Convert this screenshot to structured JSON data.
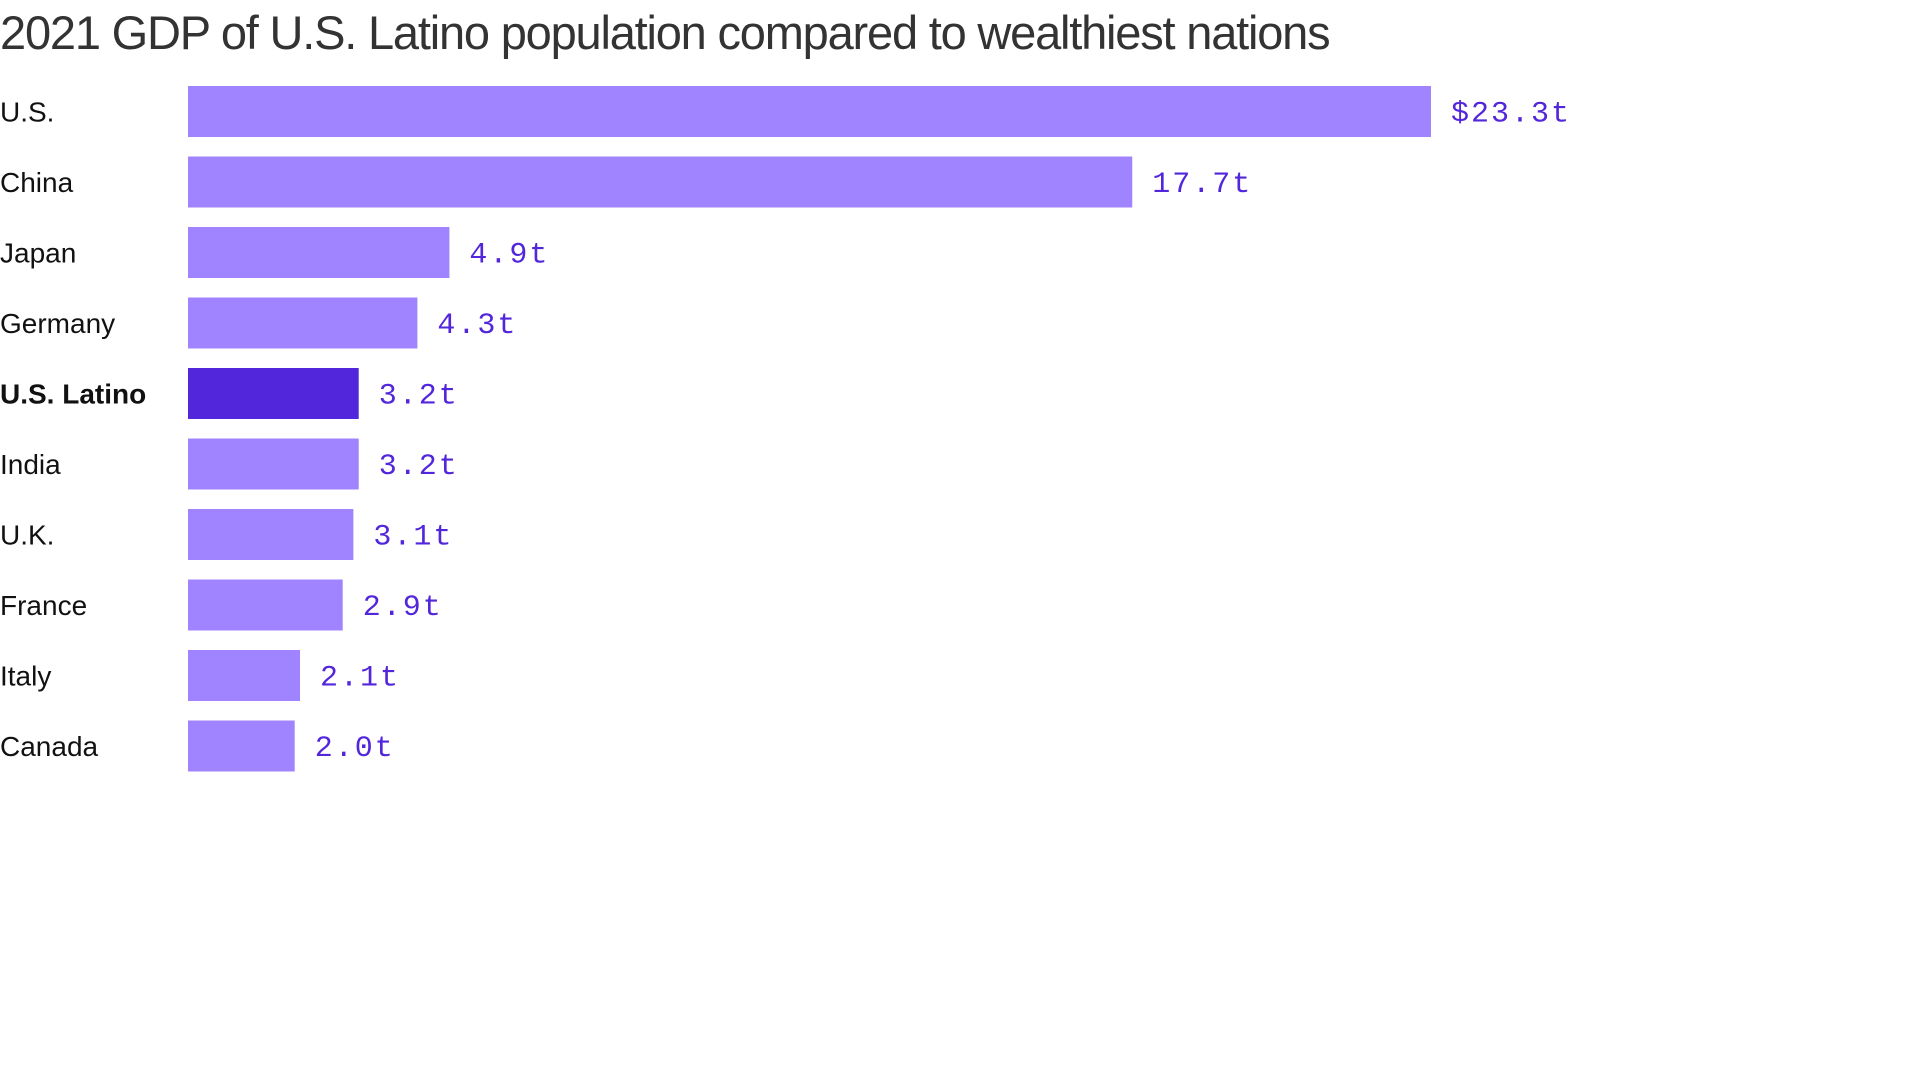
{
  "chart_data": {
    "type": "bar",
    "orientation": "horizontal",
    "title": "2021 GDP of U.S. Latino population compared to wealthiest nations",
    "categories": [
      "U.S.",
      "China",
      "Japan",
      "Germany",
      "U.S. Latino",
      "India",
      "U.K.",
      "France",
      "Italy",
      "Canada"
    ],
    "values": [
      23.3,
      17.7,
      4.9,
      4.3,
      3.2,
      3.2,
      3.1,
      2.9,
      2.1,
      2.0
    ],
    "value_labels": [
      "$23.3t",
      "17.7t",
      "4.9t",
      "4.3t",
      "3.2t",
      "3.2t",
      "3.1t",
      "2.9t",
      "2.1t",
      "2.0t"
    ],
    "highlight_category": "U.S. Latino",
    "unit": "trillion USD",
    "xlim": [
      0,
      23.3
    ],
    "grid": false,
    "legend": "none",
    "colors": {
      "bar": "#a083ff",
      "bar_highlight": "#5226db",
      "value_text": "#5226db",
      "category_text": "#111111",
      "title_text": "#333333"
    }
  }
}
